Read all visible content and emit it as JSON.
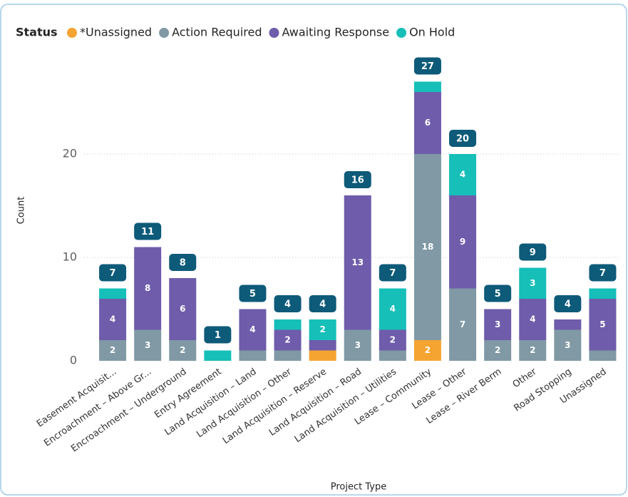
{
  "chart_data": {
    "type": "stacked_bar",
    "legend_title": "Status",
    "x_label": "Project Type",
    "y_label": "Count",
    "categories": [
      "Easement Acquisit...",
      "Encroachment – Above Gr...",
      "Encroachment – Underground",
      "Entry Agreement",
      "Land Acquisition – Land",
      "Land Acquisition – Other",
      "Land Acquisition – Reserve",
      "Land Acquisition – Road",
      "Land Acquisition – Utilities",
      "Lease – Community",
      "Lease – Other",
      "Lease – River Berm",
      "Other",
      "Road Stopping",
      "Unassigned"
    ],
    "series": [
      {
        "name": "*Unassigned",
        "color": "#f5a431",
        "values": [
          0,
          0,
          0,
          0,
          0,
          0,
          1,
          0,
          0,
          2,
          0,
          0,
          0,
          0,
          0
        ]
      },
      {
        "name": "Action Required",
        "color": "#8099a5",
        "values": [
          2,
          3,
          2,
          0,
          1,
          1,
          0,
          3,
          1,
          18,
          7,
          2,
          2,
          3,
          1
        ]
      },
      {
        "name": "Awaiting Response",
        "color": "#6f5cab",
        "values": [
          4,
          8,
          6,
          0,
          4,
          2,
          1,
          13,
          2,
          6,
          9,
          3,
          4,
          1,
          5
        ]
      },
      {
        "name": "On Hold",
        "color": "#16bfb8",
        "values": [
          1,
          0,
          0,
          1,
          0,
          1,
          2,
          0,
          4,
          1,
          4,
          0,
          3,
          0,
          1
        ]
      }
    ],
    "totals": [
      7,
      11,
      8,
      1,
      5,
      4,
      4,
      16,
      7,
      27,
      20,
      5,
      9,
      4,
      7
    ],
    "ylim": [
      0,
      30
    ],
    "yticks": [
      0,
      10,
      20
    ],
    "grid": true
  }
}
